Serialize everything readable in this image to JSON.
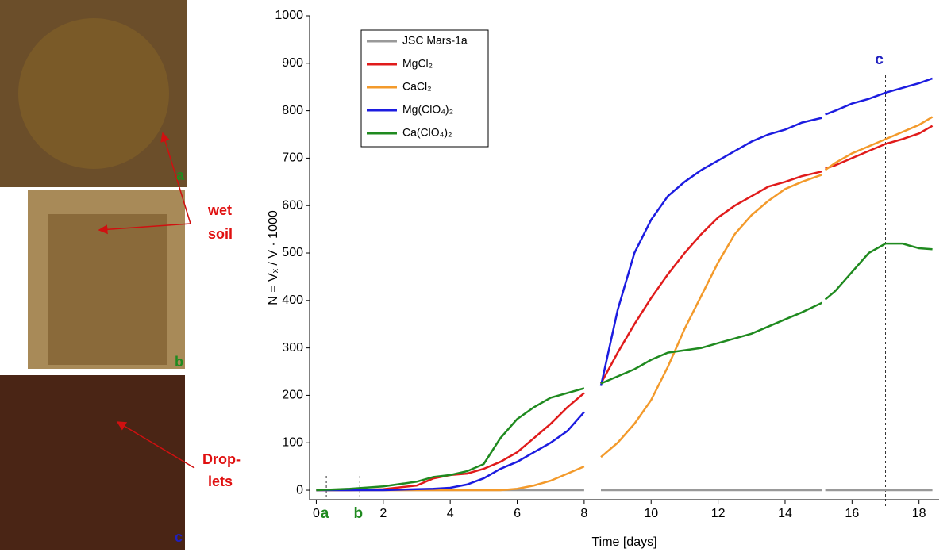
{
  "photo_labels": [
    {
      "letter": "a",
      "text_lines": [
        "wet",
        "soil"
      ]
    },
    {
      "letter": "b"
    },
    {
      "letter": "c",
      "text_lines": [
        "Drop-",
        "lets"
      ]
    }
  ],
  "chart_data": {
    "type": "line",
    "xlabel": "Time [days]",
    "ylabel": "N = Vₓ / V · 1000",
    "xlim": [
      -0.2,
      18.6
    ],
    "ylim": [
      -20,
      1000
    ],
    "xticks": [
      0,
      2,
      4,
      6,
      8,
      10,
      12,
      14,
      16,
      18
    ],
    "yticks": [
      0,
      100,
      200,
      300,
      400,
      500,
      600,
      700,
      800,
      900,
      1000
    ],
    "legend": "upper left",
    "x": [
      0,
      1,
      2,
      3,
      3.5,
      4,
      4.5,
      5,
      5.5,
      6,
      6.5,
      7,
      7.5,
      8,
      8.25,
      8.5,
      9,
      9.5,
      10,
      10.5,
      11,
      11.5,
      12,
      12.5,
      13,
      13.5,
      14,
      14.5,
      15.1,
      15.15,
      15.2,
      15.5,
      16,
      16.5,
      17,
      17.5,
      18,
      18.4
    ],
    "series": [
      {
        "name": "JSC Mars-1a",
        "color": "#999999",
        "values": [
          0,
          0,
          0,
          0,
          0,
          0,
          0,
          0,
          0,
          0,
          0,
          0,
          0,
          0,
          null,
          0,
          0,
          0,
          0,
          0,
          0,
          0,
          0,
          0,
          0,
          0,
          0,
          0,
          0,
          null,
          0,
          0,
          0,
          0,
          0,
          0,
          0,
          0
        ]
      },
      {
        "name": "MgCl₂",
        "color": "#e01b1b",
        "values": [
          0,
          0,
          2,
          10,
          25,
          32,
          35,
          45,
          60,
          80,
          110,
          140,
          175,
          205,
          null,
          225,
          290,
          350,
          405,
          455,
          500,
          540,
          575,
          600,
          620,
          640,
          650,
          662,
          672,
          null,
          678,
          685,
          700,
          715,
          730,
          740,
          752,
          768
        ]
      },
      {
        "name": "CaCl₂",
        "color": "#f39a2b",
        "values": [
          0,
          0,
          0,
          0,
          0,
          0,
          0,
          0,
          0,
          3,
          10,
          20,
          35,
          50,
          null,
          70,
          100,
          140,
          190,
          260,
          340,
          410,
          480,
          540,
          580,
          610,
          635,
          650,
          665,
          null,
          675,
          690,
          710,
          725,
          740,
          755,
          770,
          787
        ]
      },
      {
        "name": "Mg(ClO₄)₂",
        "color": "#1c1ce0",
        "values": [
          0,
          0,
          0,
          2,
          3,
          5,
          12,
          25,
          45,
          60,
          80,
          100,
          125,
          165,
          null,
          220,
          380,
          500,
          570,
          620,
          650,
          675,
          695,
          715,
          735,
          750,
          760,
          775,
          785,
          null,
          792,
          800,
          815,
          825,
          838,
          848,
          858,
          868
        ]
      },
      {
        "name": "Ca(ClO₄)₂",
        "color": "#1f8a1f",
        "values": [
          0,
          3,
          8,
          18,
          28,
          32,
          40,
          55,
          110,
          150,
          175,
          195,
          205,
          215,
          null,
          225,
          240,
          255,
          275,
          290,
          295,
          300,
          310,
          320,
          330,
          345,
          360,
          375,
          395,
          null,
          402,
          420,
          460,
          500,
          520,
          520,
          510,
          508
        ]
      }
    ],
    "markers": [
      {
        "label": "a",
        "x": 0.3,
        "color": "#1f8a1f"
      },
      {
        "label": "b",
        "x": 1.3,
        "color": "#1f8a1f"
      },
      {
        "label": "c",
        "x": 17,
        "color": "#2020c0"
      }
    ]
  }
}
